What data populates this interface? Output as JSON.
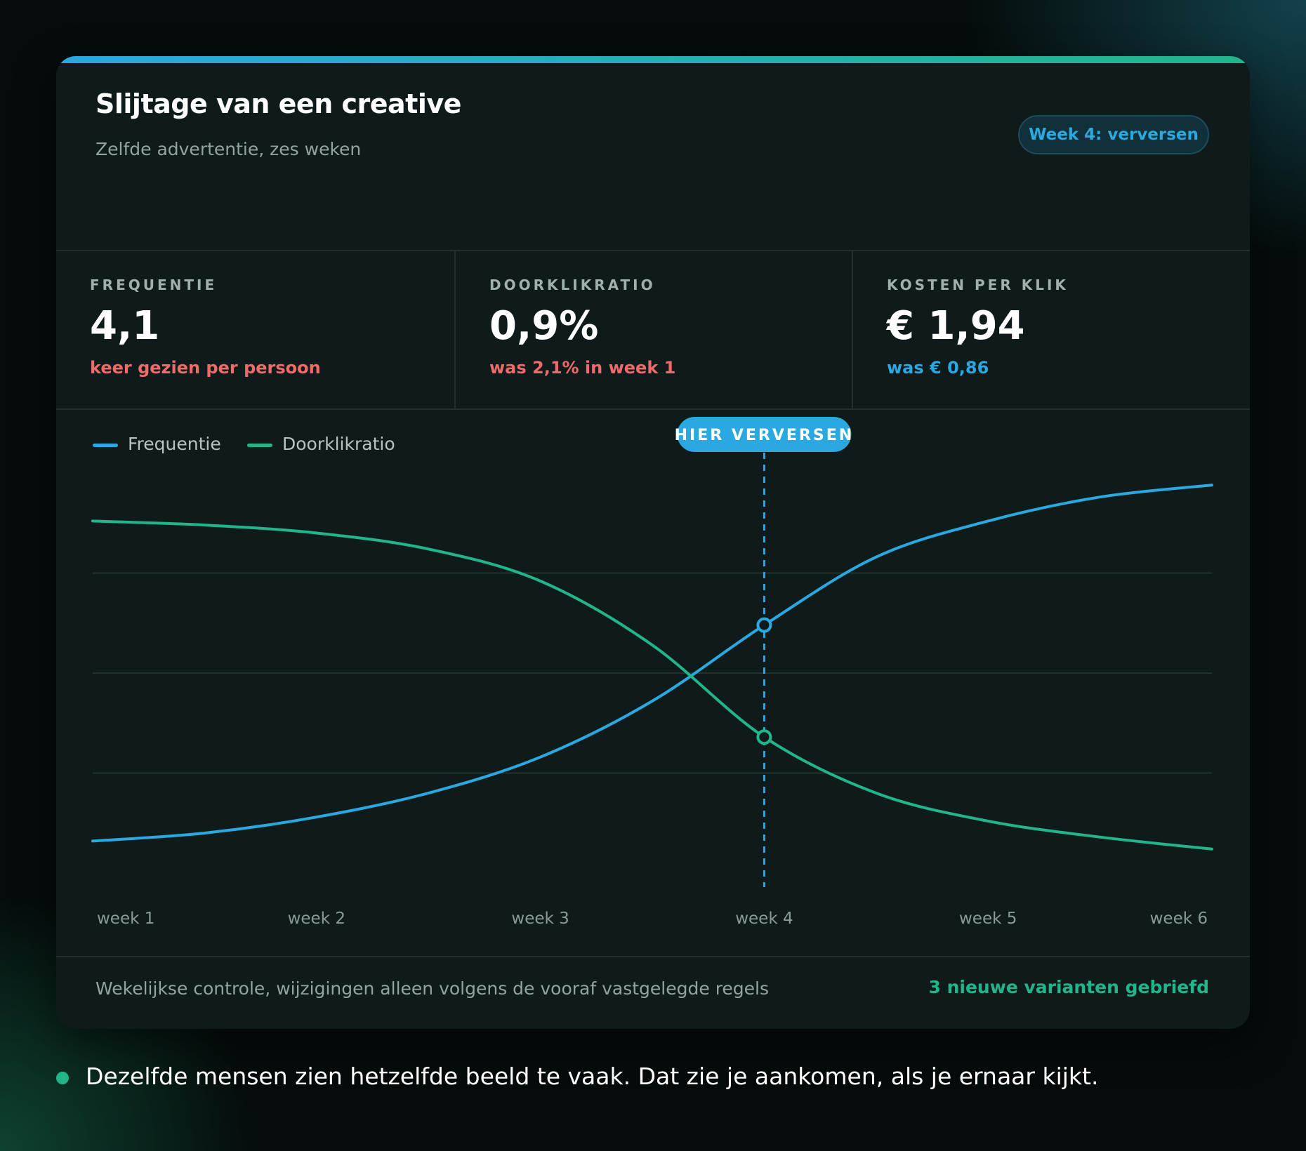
{
  "colors": {
    "frequency": "#2aa8e0",
    "ctr": "#22b58a",
    "negative": "#ef6b6b",
    "positive": "#2aa8e0"
  },
  "header": {
    "title": "Slijtage van een creative",
    "subtitle": "Zelfde advertentie, zes weken",
    "badge": "Week 4: verversen"
  },
  "stats": [
    {
      "label": "FREQUENTIE",
      "value": "4,1",
      "note": "keer gezien per persoon",
      "note_tone": "negative"
    },
    {
      "label": "DOORKLIKRATIO",
      "value": "0,9%",
      "note": "was 2,1% in week 1",
      "note_tone": "negative"
    },
    {
      "label": "KOSTEN PER KLIK",
      "value": "€ 1,94",
      "note": "was € 0,86",
      "note_tone": "positive"
    }
  ],
  "chart_data": {
    "type": "line",
    "x": [
      1,
      1.5,
      2,
      2.5,
      3,
      3.5,
      4,
      4.5,
      5,
      5.5,
      6
    ],
    "categories": [
      "week 1",
      "week 2",
      "week 3",
      "week 4",
      "week 5",
      "week 6"
    ],
    "series": [
      {
        "name": "Frequentie",
        "color": "#2aa8e0",
        "values": [
          0.08,
          0.1,
          0.14,
          0.2,
          0.29,
          0.43,
          0.62,
          0.79,
          0.88,
          0.94,
          0.97
        ]
      },
      {
        "name": "Doorklikratio",
        "color": "#22b58a",
        "values": [
          0.88,
          0.87,
          0.85,
          0.81,
          0.73,
          0.57,
          0.34,
          0.2,
          0.13,
          0.09,
          0.06
        ]
      }
    ],
    "marker": {
      "x": 4,
      "label": "HIER VERVERSEN"
    },
    "ylim": [
      0,
      1
    ],
    "grid": true,
    "legend": "top-left"
  },
  "footer": {
    "text": "Wekelijkse controle, wijzigingen alleen volgens de vooraf vastgelegde regels",
    "link": "3 nieuwe varianten gebriefd"
  },
  "caption": "Dezelfde mensen zien hetzelfde beeld te vaak. Dat zie je aankomen, als je ernaar kijkt."
}
